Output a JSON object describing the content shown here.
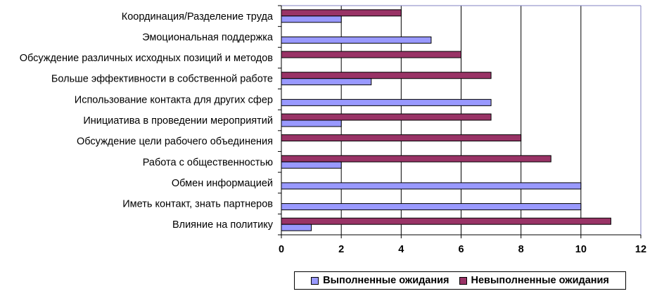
{
  "chart_data": {
    "type": "bar",
    "orientation": "horizontal",
    "categories": [
      "Координация/Разделение труда",
      "Эмоциональная поддержка",
      "Обсуждение различных исходных позиций и методов",
      "Больше эффективности в собственной работе",
      "Использование контакта для других сфер",
      "Инициатива в проведении мероприятий",
      "Обсуждение цели рабочего объединения",
      "Работа с общественностью",
      "Обмен информацией",
      "Иметь контакт, знать партнеров",
      "Влияние на политику"
    ],
    "series": [
      {
        "name": "Выполненные ожидания",
        "color": "#9999ff",
        "values": [
          2,
          5,
          0,
          3,
          7,
          2,
          0,
          2,
          10,
          10,
          1
        ]
      },
      {
        "name": "Невыполненные ожидания",
        "color": "#993366",
        "values": [
          4,
          0,
          6,
          7,
          0,
          7,
          8,
          9,
          0,
          0,
          11
        ]
      }
    ],
    "xlim": [
      0,
      12
    ],
    "xticks": [
      0,
      2,
      4,
      6,
      8,
      10,
      12
    ],
    "grid": "vertical",
    "legend_position": "bottom-right"
  }
}
